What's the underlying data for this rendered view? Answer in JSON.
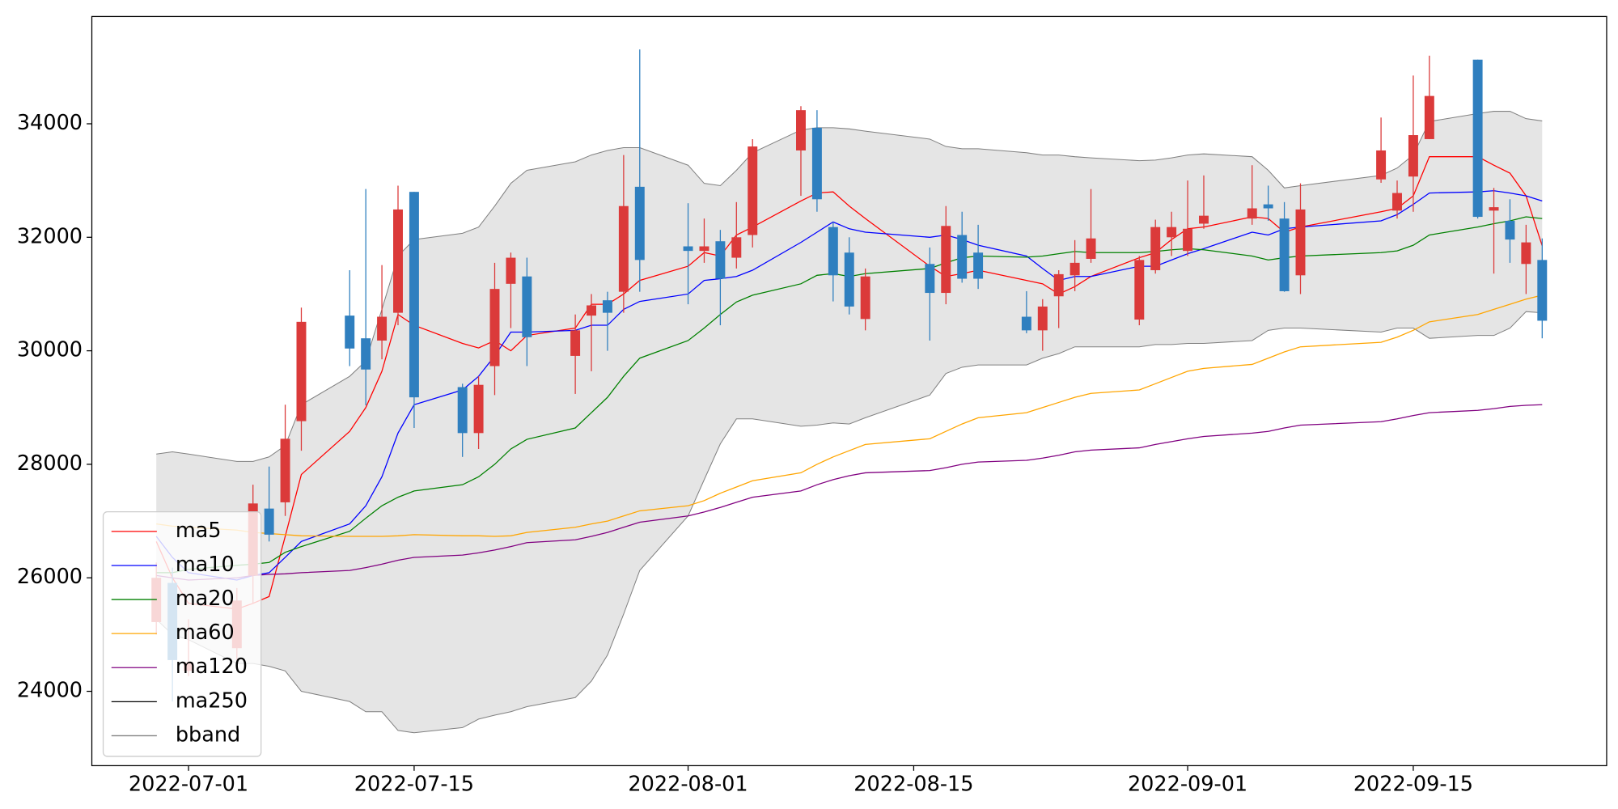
{
  "chart_data": {
    "type": "candlestick",
    "x": [
      "2022-06-29",
      "2022-06-30",
      "2022-07-01",
      "2022-07-04",
      "2022-07-05",
      "2022-07-06",
      "2022-07-07",
      "2022-07-08",
      "2022-07-11",
      "2022-07-12",
      "2022-07-13",
      "2022-07-14",
      "2022-07-15",
      "2022-07-18",
      "2022-07-19",
      "2022-07-20",
      "2022-07-21",
      "2022-07-22",
      "2022-07-25",
      "2022-07-26",
      "2022-07-27",
      "2022-07-28",
      "2022-07-29",
      "2022-08-01",
      "2022-08-02",
      "2022-08-03",
      "2022-08-04",
      "2022-08-05",
      "2022-08-08",
      "2022-08-09",
      "2022-08-10",
      "2022-08-11",
      "2022-08-12",
      "2022-08-16",
      "2022-08-17",
      "2022-08-18",
      "2022-08-19",
      "2022-08-22",
      "2022-08-23",
      "2022-08-24",
      "2022-08-25",
      "2022-08-26",
      "2022-08-29",
      "2022-08-30",
      "2022-08-31",
      "2022-09-01",
      "2022-09-02",
      "2022-09-05",
      "2022-09-06",
      "2022-09-07",
      "2022-09-08",
      "2022-09-13",
      "2022-09-14",
      "2022-09-15",
      "2022-09-16",
      "2022-09-19",
      "2022-09-20",
      "2022-09-21",
      "2022-09-22",
      "2022-09-23"
    ],
    "open": [
      25220,
      25910,
      24360,
      24760,
      26040,
      27220,
      27330,
      28760,
      30620,
      30220,
      30180,
      30670,
      32800,
      29360,
      28550,
      29730,
      31180,
      31310,
      29910,
      30620,
      30890,
      31040,
      32890,
      31840,
      31760,
      31930,
      31640,
      32040,
      33530,
      33930,
      32180,
      31730,
      30560,
      31530,
      31020,
      32040,
      31730,
      30600,
      30360,
      30960,
      31330,
      31620,
      30550,
      31420,
      32000,
      31760,
      32240,
      32330,
      32580,
      32330,
      31330,
      33020,
      32470,
      33070,
      33730,
      35130,
      32470,
      32290,
      31530,
      31600
    ],
    "high": [
      26270,
      26180,
      25270,
      25820,
      27640,
      27960,
      29050,
      30760,
      31420,
      32850,
      31510,
      32910,
      32800,
      29420,
      29550,
      31550,
      31730,
      31640,
      30640,
      31000,
      31040,
      33450,
      35310,
      32600,
      32330,
      32130,
      32620,
      33730,
      34310,
      34240,
      32270,
      32000,
      31450,
      31820,
      32550,
      32450,
      32220,
      31050,
      30910,
      31420,
      31950,
      32850,
      31670,
      32310,
      32450,
      33000,
      33090,
      33270,
      32910,
      32620,
      32950,
      34110,
      33000,
      34850,
      35200,
      35130,
      32870,
      32670,
      32220,
      31980
    ],
    "low": [
      25000,
      23820,
      24270,
      24550,
      25550,
      26640,
      27090,
      28240,
      29730,
      29040,
      29850,
      30450,
      28640,
      28130,
      28270,
      29220,
      30400,
      29730,
      29240,
      29640,
      30000,
      30670,
      31040,
      30820,
      31550,
      30450,
      31450,
      31820,
      32730,
      32450,
      30870,
      30640,
      30360,
      30180,
      30820,
      31200,
      31090,
      30310,
      30000,
      30400,
      31050,
      31550,
      30450,
      31360,
      31670,
      31670,
      32150,
      32220,
      32290,
      31040,
      31000,
      32960,
      32330,
      32450,
      33730,
      32330,
      31360,
      31550,
      31000,
      30220
    ],
    "close": [
      26000,
      24550,
      24510,
      25600,
      27310,
      26760,
      28450,
      30510,
      30040,
      29670,
      30600,
      32490,
      29180,
      28550,
      29400,
      31090,
      31640,
      30240,
      30360,
      30800,
      30670,
      32550,
      31600,
      31760,
      31840,
      31270,
      32000,
      33600,
      34240,
      32670,
      31330,
      30780,
      31310,
      31020,
      32200,
      31270,
      31270,
      30360,
      30780,
      31350,
      31550,
      31980,
      31600,
      32180,
      32180,
      32150,
      32380,
      32510,
      32510,
      31050,
      32490,
      33530,
      32780,
      33800,
      34490,
      32360,
      32530,
      31960,
      31910,
      30530
    ],
    "up_color": "#db3a3a",
    "down_color": "#2f7fbf",
    "series": [
      {
        "name": "ma5",
        "color": "#ff0000",
        "values": [
          26640,
          26000,
          25550,
          25450,
          25550,
          25670,
          26730,
          27820,
          28580,
          29000,
          29640,
          30640,
          30450,
          30130,
          30050,
          30180,
          30000,
          30270,
          30400,
          30820,
          30820,
          31000,
          31240,
          31490,
          31730,
          31670,
          32040,
          32180,
          32640,
          32780,
          32800,
          32550,
          32330,
          31490,
          31310,
          31360,
          31420,
          31240,
          31180,
          31000,
          31130,
          31310,
          31640,
          31730,
          31960,
          32150,
          32180,
          32360,
          32330,
          32090,
          32180,
          32450,
          32510,
          32730,
          33420,
          33420,
          33270,
          33130,
          32730,
          31850
        ]
      },
      {
        "name": "ma10",
        "color": "#0000ff",
        "values": [
          26730,
          26360,
          26090,
          25960,
          26040,
          26090,
          26360,
          26640,
          26950,
          27270,
          27780,
          28550,
          29050,
          29310,
          29550,
          29910,
          30330,
          30330,
          30360,
          30450,
          30450,
          30730,
          30870,
          31000,
          31240,
          31270,
          31310,
          31420,
          31910,
          32090,
          32270,
          32150,
          32090,
          32000,
          32040,
          31960,
          31860,
          31670,
          31450,
          31240,
          31310,
          31310,
          31490,
          31490,
          31600,
          31710,
          31800,
          32090,
          32040,
          32150,
          32180,
          32290,
          32400,
          32580,
          32780,
          32800,
          32820,
          32780,
          32730,
          32640
        ]
      },
      {
        "name": "ma20",
        "color": "#008000",
        "values": [
          26090,
          26090,
          26150,
          26220,
          26240,
          26270,
          26450,
          26550,
          26820,
          27050,
          27270,
          27420,
          27530,
          27640,
          27780,
          28000,
          28270,
          28440,
          28640,
          28910,
          29180,
          29550,
          29870,
          30180,
          30400,
          30640,
          30860,
          30980,
          31180,
          31330,
          31360,
          31310,
          31360,
          31450,
          31550,
          31640,
          31670,
          31650,
          31670,
          31710,
          31750,
          31730,
          31730,
          31750,
          31780,
          31800,
          31780,
          31670,
          31600,
          31640,
          31670,
          31730,
          31760,
          31860,
          32040,
          32180,
          32240,
          32290,
          32360,
          32330
        ]
      },
      {
        "name": "ma60",
        "color": "#ffa500",
        "values": [
          26950,
          26910,
          26890,
          26840,
          26800,
          26780,
          26760,
          26740,
          26730,
          26730,
          26730,
          26740,
          26760,
          26740,
          26740,
          26730,
          26740,
          26800,
          26890,
          26950,
          27000,
          27090,
          27180,
          27270,
          27360,
          27490,
          27600,
          27710,
          27850,
          28000,
          28130,
          28240,
          28350,
          28450,
          28580,
          28710,
          28820,
          28910,
          29000,
          29090,
          29180,
          29250,
          29310,
          29420,
          29530,
          29640,
          29690,
          29760,
          29870,
          29980,
          30070,
          30150,
          30240,
          30360,
          30510,
          30640,
          30730,
          30820,
          30910,
          30980
        ]
      },
      {
        "name": "ma120",
        "color": "#800080",
        "values": [
          26040,
          26000,
          25960,
          26000,
          26040,
          26060,
          26070,
          26090,
          26130,
          26180,
          26240,
          26310,
          26360,
          26400,
          26440,
          26490,
          26550,
          26620,
          26670,
          26730,
          26800,
          26890,
          26980,
          27090,
          27160,
          27240,
          27330,
          27420,
          27530,
          27640,
          27730,
          27800,
          27850,
          27890,
          27940,
          28000,
          28040,
          28070,
          28110,
          28160,
          28220,
          28250,
          28290,
          28350,
          28400,
          28450,
          28490,
          28550,
          28580,
          28640,
          28690,
          28750,
          28800,
          28860,
          28910,
          28950,
          28980,
          29020,
          29040,
          29050
        ]
      },
      {
        "name": "ma250",
        "color": "#000000",
        "values": [
          null,
          null,
          null,
          null,
          null,
          null,
          null,
          null,
          null,
          null,
          null,
          null,
          null,
          null,
          null,
          null,
          null,
          null,
          null,
          null,
          null,
          null,
          null,
          null,
          null,
          null,
          null,
          null,
          null,
          null,
          null,
          null,
          null,
          null,
          null,
          null,
          null,
          null,
          null,
          null,
          null,
          null,
          null,
          null,
          null,
          null,
          null,
          null,
          null,
          null,
          null,
          null,
          null,
          null,
          null,
          null,
          null,
          null,
          null,
          null
        ]
      }
    ],
    "band": {
      "name": "bband",
      "color": "#808080",
      "fill": "#e5e5e5",
      "upper": [
        28180,
        28220,
        28180,
        28050,
        28050,
        28130,
        28330,
        29050,
        29550,
        29820,
        30730,
        31670,
        31960,
        32070,
        32180,
        32550,
        32950,
        33180,
        33330,
        33450,
        33530,
        33580,
        33580,
        33270,
        32950,
        32910,
        33180,
        33490,
        33890,
        33930,
        33930,
        33910,
        33870,
        33730,
        33600,
        33560,
        33560,
        33490,
        33450,
        33450,
        33420,
        33400,
        33350,
        33360,
        33400,
        33450,
        33470,
        33420,
        33180,
        32870,
        32910,
        33090,
        33220,
        33450,
        34040,
        34180,
        34220,
        34220,
        34090,
        34050
      ],
      "lower": [
        25270,
        25000,
        24910,
        24490,
        24490,
        24440,
        24360,
        24000,
        23820,
        23640,
        23640,
        23310,
        23270,
        23360,
        23510,
        23580,
        23640,
        23730,
        23890,
        24180,
        24640,
        25360,
        26130,
        27090,
        27730,
        28360,
        28800,
        28800,
        28670,
        28690,
        28730,
        28710,
        28820,
        29220,
        29600,
        29710,
        29750,
        29750,
        29870,
        29950,
        30070,
        30070,
        30070,
        30110,
        30110,
        30130,
        30130,
        30180,
        30360,
        30400,
        30400,
        30330,
        30400,
        30400,
        30220,
        30270,
        30270,
        30400,
        30690,
        30670
      ]
    },
    "xlim": [
      "2022-06-25",
      "2022-09-27"
    ],
    "xticks": [
      "2022-07-01",
      "2022-07-15",
      "2022-08-01",
      "2022-08-15",
      "2022-09-01",
      "2022-09-15"
    ],
    "ylim": [
      22690,
      35890
    ],
    "yticks": [
      24000,
      26000,
      28000,
      30000,
      32000,
      34000
    ],
    "legend": "lower left"
  }
}
